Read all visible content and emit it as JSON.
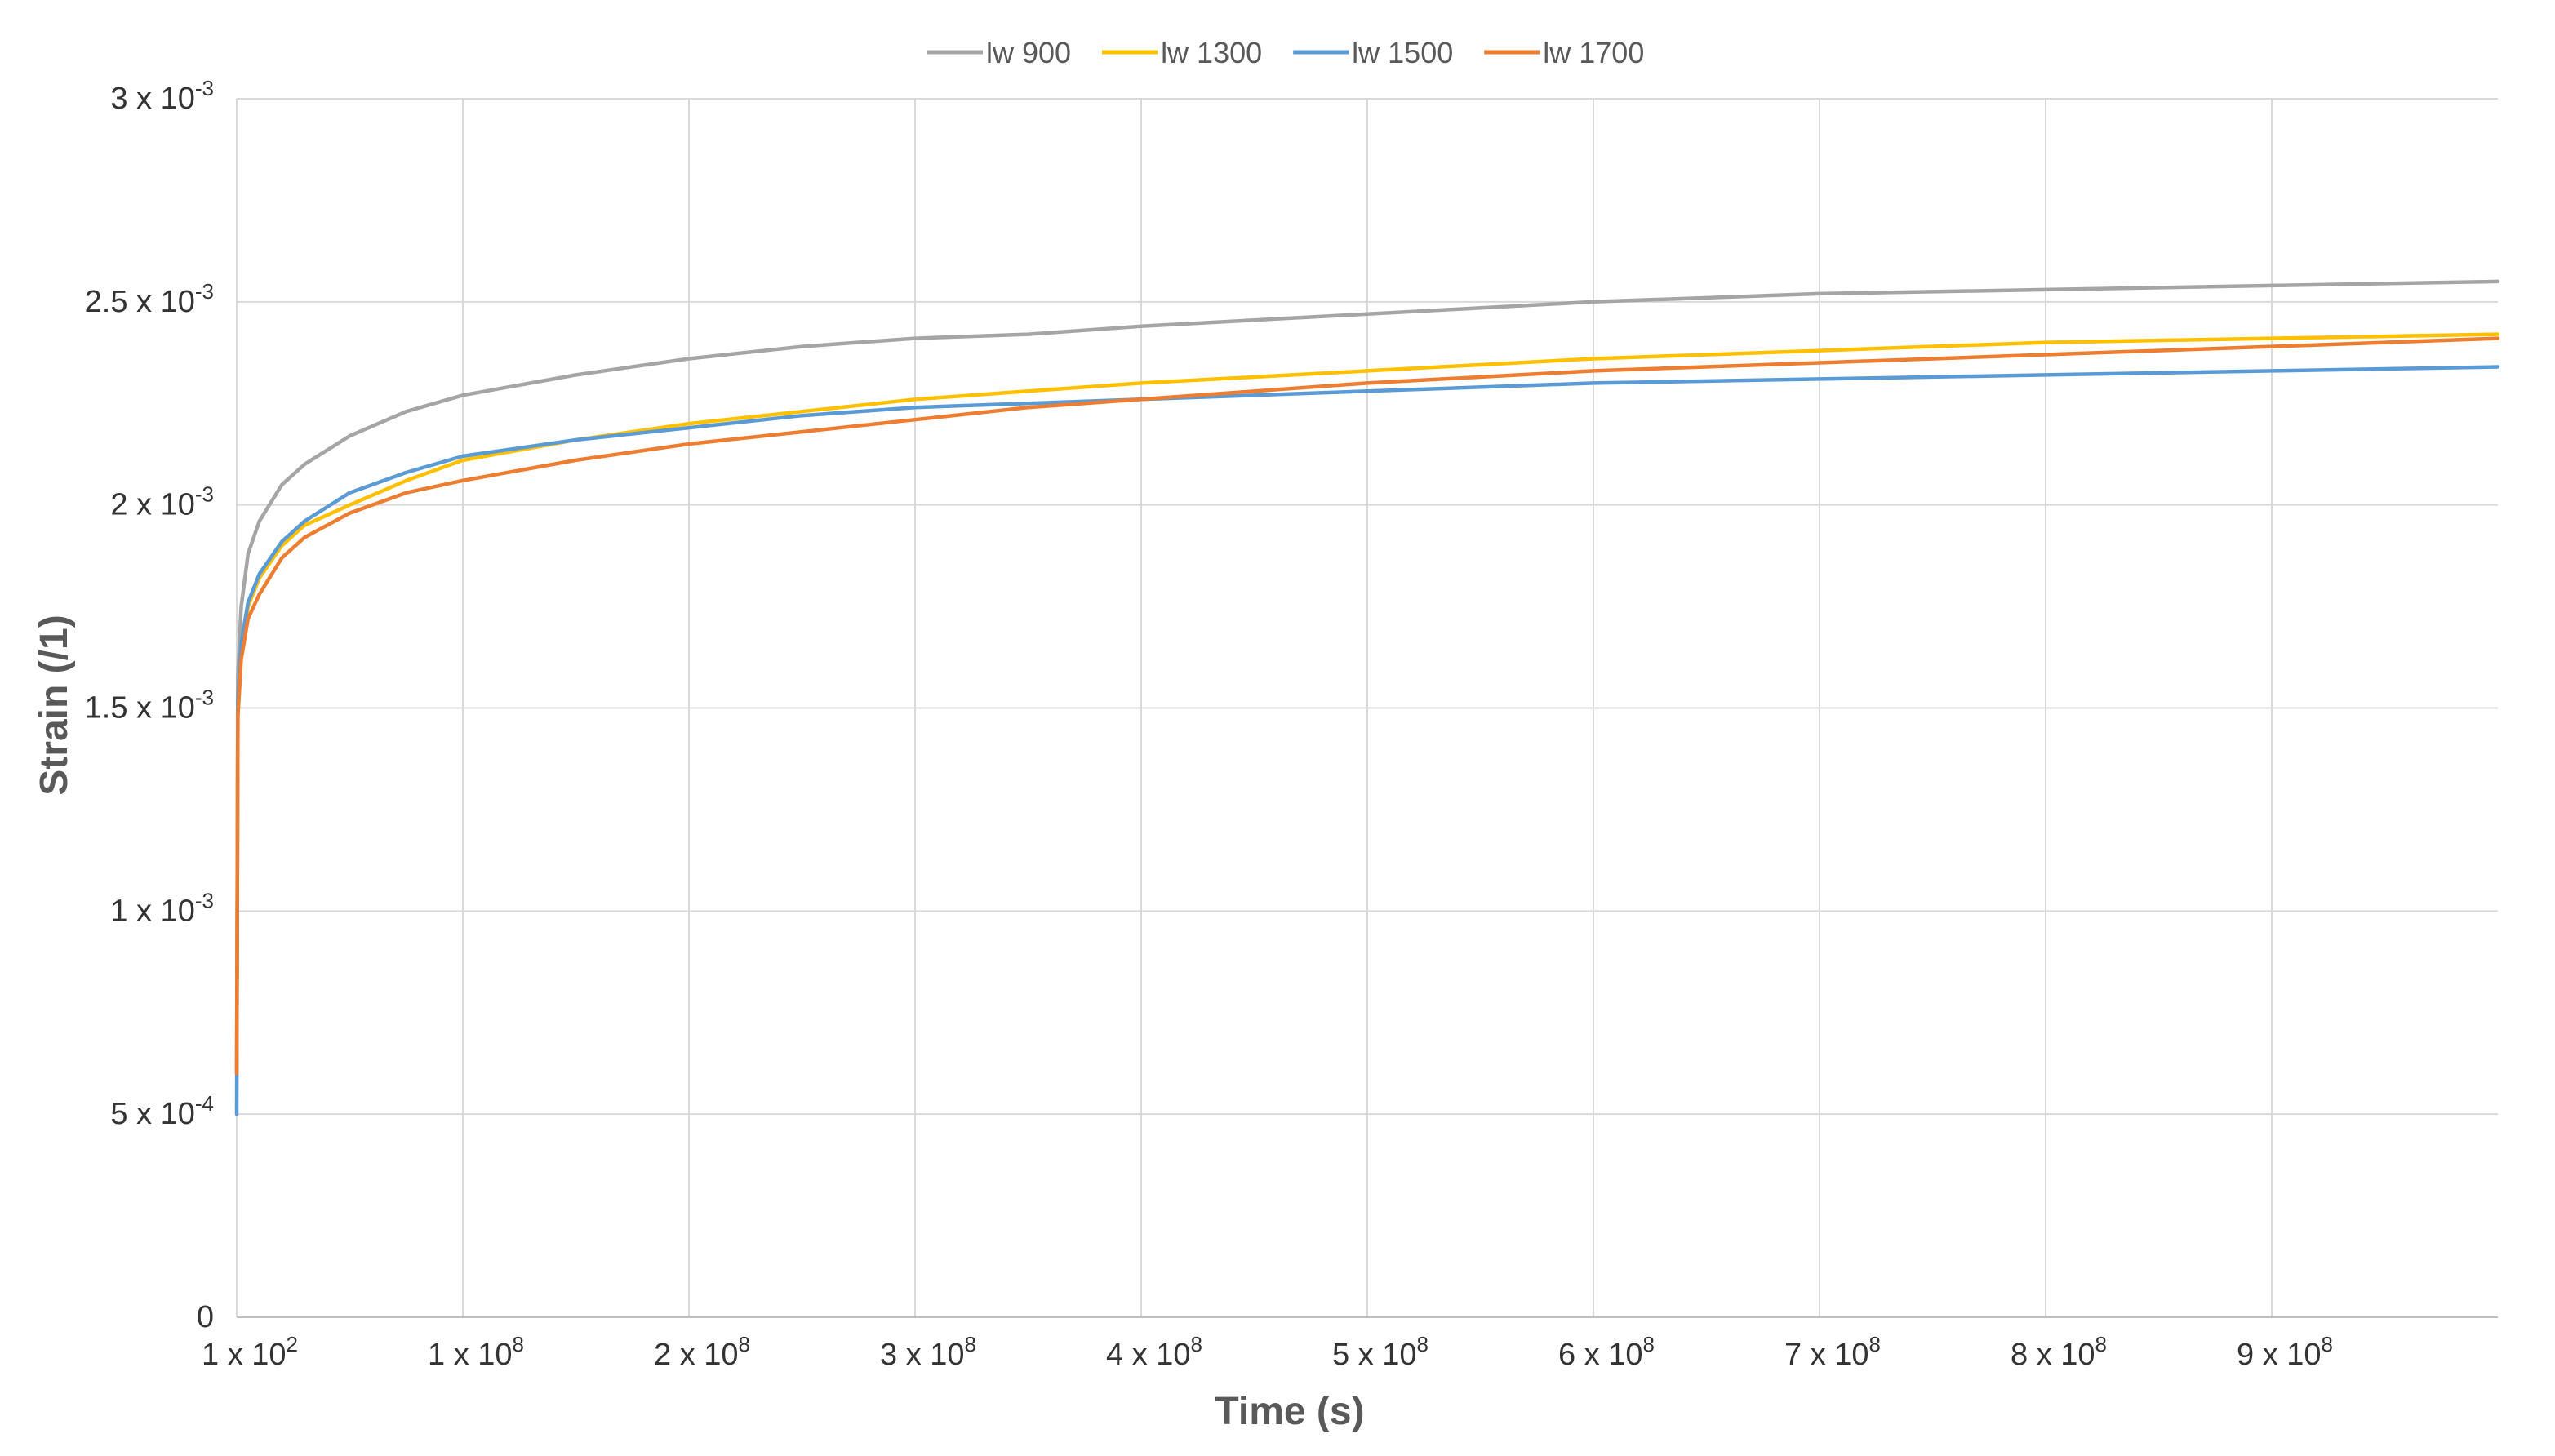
{
  "chart_data": {
    "type": "line",
    "xlabel": "Time (s)",
    "ylabel": "Strain (/1)",
    "xlim": [
      0,
      1000000000
    ],
    "ylim": [
      0,
      0.003
    ],
    "grid": true,
    "legend_position": "top-center",
    "x_ticks": [
      {
        "value": 100,
        "mantissa": "1 x 10",
        "exp": "2"
      },
      {
        "value": 100000000,
        "mantissa": "1 x 10",
        "exp": "8"
      },
      {
        "value": 200000000,
        "mantissa": "2 x 10",
        "exp": "8"
      },
      {
        "value": 300000000,
        "mantissa": "3 x 10",
        "exp": "8"
      },
      {
        "value": 400000000,
        "mantissa": "4 x 10",
        "exp": "8"
      },
      {
        "value": 500000000,
        "mantissa": "5 x 10",
        "exp": "8"
      },
      {
        "value": 600000000,
        "mantissa": "6 x 10",
        "exp": "8"
      },
      {
        "value": 700000000,
        "mantissa": "7 x 10",
        "exp": "8"
      },
      {
        "value": 800000000,
        "mantissa": "8 x 10",
        "exp": "8"
      },
      {
        "value": 900000000,
        "mantissa": "9 x 10",
        "exp": "8"
      }
    ],
    "y_ticks": [
      {
        "value": 0,
        "mantissa": "0",
        "exp": ""
      },
      {
        "value": 0.0005,
        "mantissa": "5 x 10",
        "exp": "-4"
      },
      {
        "value": 0.001,
        "mantissa": "1 x 10",
        "exp": "-3"
      },
      {
        "value": 0.0015,
        "mantissa": "1.5 x 10",
        "exp": "-3"
      },
      {
        "value": 0.002,
        "mantissa": "2 x 10",
        "exp": "-3"
      },
      {
        "value": 0.0025,
        "mantissa": "2.5 x 10",
        "exp": "-3"
      },
      {
        "value": 0.003,
        "mantissa": "3 x 10",
        "exp": "-3"
      }
    ],
    "series": [
      {
        "name": "lw 900",
        "color": "#A5A5A5",
        "x": [
          100,
          500000,
          2000000,
          5000000,
          10000000,
          20000000,
          30000000,
          50000000,
          75000000,
          100000000,
          150000000,
          200000000,
          250000000,
          300000000,
          350000000,
          400000000,
          500000000,
          600000000,
          700000000,
          800000000,
          900000000,
          1000000000
        ],
        "y": [
          0.00062,
          0.00158,
          0.00175,
          0.00188,
          0.00196,
          0.00205,
          0.0021,
          0.00217,
          0.00223,
          0.00227,
          0.00232,
          0.00236,
          0.00239,
          0.00241,
          0.00242,
          0.00244,
          0.00247,
          0.0025,
          0.00252,
          0.00253,
          0.00254,
          0.00255
        ]
      },
      {
        "name": "lw 1300",
        "color": "#FFC000",
        "x": [
          100,
          500000,
          2000000,
          5000000,
          10000000,
          20000000,
          30000000,
          50000000,
          75000000,
          100000000,
          150000000,
          200000000,
          250000000,
          300000000,
          350000000,
          400000000,
          500000000,
          600000000,
          700000000,
          800000000,
          900000000,
          1000000000
        ],
        "y": [
          0.0006,
          0.00152,
          0.00165,
          0.00175,
          0.00182,
          0.0019,
          0.00195,
          0.002,
          0.00206,
          0.00211,
          0.00216,
          0.0022,
          0.00223,
          0.00226,
          0.00228,
          0.0023,
          0.00233,
          0.00236,
          0.00238,
          0.0024,
          0.00241,
          0.00242
        ]
      },
      {
        "name": "lw 1500",
        "color": "#5B9BD5",
        "x": [
          100,
          500000,
          2000000,
          5000000,
          10000000,
          20000000,
          30000000,
          50000000,
          75000000,
          100000000,
          150000000,
          200000000,
          250000000,
          300000000,
          350000000,
          400000000,
          500000000,
          600000000,
          700000000,
          800000000,
          900000000,
          1000000000
        ],
        "y": [
          0.0005,
          0.00152,
          0.00166,
          0.00176,
          0.00183,
          0.00191,
          0.00196,
          0.00203,
          0.00208,
          0.00212,
          0.00216,
          0.00219,
          0.00222,
          0.00224,
          0.00225,
          0.00226,
          0.00228,
          0.0023,
          0.00231,
          0.00232,
          0.00233,
          0.00234
        ]
      },
      {
        "name": "lw 1700",
        "color": "#ED7D31",
        "x": [
          100,
          500000,
          2000000,
          5000000,
          10000000,
          20000000,
          30000000,
          50000000,
          75000000,
          100000000,
          150000000,
          200000000,
          250000000,
          300000000,
          350000000,
          400000000,
          500000000,
          600000000,
          700000000,
          800000000,
          900000000,
          1000000000
        ],
        "y": [
          0.0006,
          0.00148,
          0.00162,
          0.00172,
          0.00178,
          0.00187,
          0.00192,
          0.00198,
          0.00203,
          0.00206,
          0.00211,
          0.00215,
          0.00218,
          0.00221,
          0.00224,
          0.00226,
          0.0023,
          0.00233,
          0.00235,
          0.00237,
          0.00239,
          0.00241
        ]
      }
    ]
  }
}
